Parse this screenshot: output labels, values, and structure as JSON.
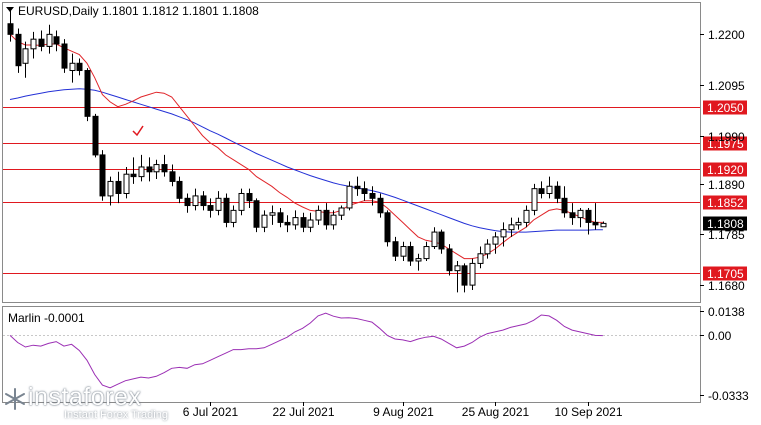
{
  "header": {
    "symbol_line": "EURUSD,Daily  1.1801  1.1812  1.1801  1.1808"
  },
  "chart_data": [
    {
      "type": "candlestick",
      "title": "EURUSD,Daily",
      "ohlc_header": {
        "open": 1.1801,
        "high": 1.1812,
        "low": 1.1801,
        "close": 1.1808
      },
      "ylim": [
        1.1645,
        1.2265
      ],
      "y_ticks": [
        "1.2200",
        "1.2095",
        "1.1990",
        "1.1890",
        "1.1785",
        "1.1680"
      ],
      "x_ticks": [
        {
          "label": "6 Jul 2021",
          "index": 26
        },
        {
          "label": "22 Jul 2021",
          "index": 38
        },
        {
          "label": "9 Aug 2021",
          "index": 51
        },
        {
          "label": "25 Aug 2021",
          "index": 63
        },
        {
          "label": "10 Sep 2021",
          "index": 75
        }
      ],
      "current_price_label": "1.1808",
      "levels": [
        {
          "price": 1.205,
          "label": "1.2050"
        },
        {
          "price": 1.1975,
          "label": "1.1975"
        },
        {
          "price": 1.192,
          "label": "1.1920"
        },
        {
          "price": 1.1852,
          "label": "1.1852"
        },
        {
          "price": 1.1705,
          "label": "1.1705"
        }
      ],
      "candles": [
        [
          1.2222,
          1.2255,
          1.2185,
          1.22
        ],
        [
          1.22,
          1.2212,
          1.212,
          1.2135
        ],
        [
          1.214,
          1.2185,
          1.211,
          1.217
        ],
        [
          1.217,
          1.2205,
          1.215,
          1.219
        ],
        [
          1.219,
          1.2208,
          1.2165,
          1.2175
        ],
        [
          1.2175,
          1.222,
          1.216,
          1.22
        ],
        [
          1.2195,
          1.2208,
          1.2165,
          1.218
        ],
        [
          1.218,
          1.219,
          1.212,
          1.213
        ],
        [
          1.2125,
          1.216,
          1.21,
          1.214
        ],
        [
          1.214,
          1.215,
          1.2115,
          1.2125
        ],
        [
          1.2125,
          1.213,
          1.202,
          1.203
        ],
        [
          1.203,
          1.2035,
          1.1945,
          1.195
        ],
        [
          1.195,
          1.196,
          1.1855,
          1.1865
        ],
        [
          1.1865,
          1.1905,
          1.1845,
          1.1895
        ],
        [
          1.1895,
          1.1915,
          1.185,
          1.187
        ],
        [
          1.187,
          1.1925,
          1.186,
          1.191
        ],
        [
          1.191,
          1.1945,
          1.189,
          1.1905
        ],
        [
          1.1905,
          1.195,
          1.1895,
          1.1925
        ],
        [
          1.1925,
          1.1945,
          1.1895,
          1.1915
        ],
        [
          1.1915,
          1.194,
          1.19,
          1.193
        ],
        [
          1.193,
          1.195,
          1.1905,
          1.1915
        ],
        [
          1.1915,
          1.193,
          1.1885,
          1.1895
        ],
        [
          1.1895,
          1.1905,
          1.185,
          1.186
        ],
        [
          1.186,
          1.187,
          1.183,
          1.1845
        ],
        [
          1.1845,
          1.188,
          1.1835,
          1.1865
        ],
        [
          1.1865,
          1.1875,
          1.1835,
          1.1845
        ],
        [
          1.1845,
          1.186,
          1.182,
          1.1835
        ],
        [
          1.1835,
          1.1875,
          1.1825,
          1.186
        ],
        [
          1.186,
          1.187,
          1.18,
          1.181
        ],
        [
          1.181,
          1.1845,
          1.18,
          1.1835
        ],
        [
          1.1835,
          1.188,
          1.1825,
          1.187
        ],
        [
          1.187,
          1.188,
          1.184,
          1.1855
        ],
        [
          1.1855,
          1.186,
          1.179,
          1.18
        ],
        [
          1.18,
          1.1835,
          1.179,
          1.1825
        ],
        [
          1.1825,
          1.1845,
          1.1805,
          1.183
        ],
        [
          1.183,
          1.184,
          1.18,
          1.181
        ],
        [
          1.181,
          1.1825,
          1.179,
          1.1805
        ],
        [
          1.1805,
          1.1835,
          1.1795,
          1.182
        ],
        [
          1.182,
          1.183,
          1.179,
          1.18
        ],
        [
          1.18,
          1.183,
          1.179,
          1.1815
        ],
        [
          1.1815,
          1.1845,
          1.1805,
          1.1835
        ],
        [
          1.1835,
          1.185,
          1.1795,
          1.1805
        ],
        [
          1.1805,
          1.1835,
          1.1795,
          1.1825
        ],
        [
          1.1825,
          1.1845,
          1.1815,
          1.184
        ],
        [
          1.184,
          1.1895,
          1.1835,
          1.1885
        ],
        [
          1.1885,
          1.1905,
          1.1865,
          1.188
        ],
        [
          1.188,
          1.1895,
          1.1855,
          1.187
        ],
        [
          1.187,
          1.1885,
          1.1845,
          1.186
        ],
        [
          1.186,
          1.187,
          1.182,
          1.183
        ],
        [
          1.183,
          1.1835,
          1.176,
          1.177
        ],
        [
          1.177,
          1.178,
          1.173,
          1.174
        ],
        [
          1.174,
          1.177,
          1.173,
          1.176
        ],
        [
          1.176,
          1.177,
          1.172,
          1.173
        ],
        [
          1.173,
          1.1745,
          1.171,
          1.1735
        ],
        [
          1.1735,
          1.177,
          1.173,
          1.176
        ],
        [
          1.176,
          1.18,
          1.1755,
          1.179
        ],
        [
          1.179,
          1.1795,
          1.1745,
          1.1755
        ],
        [
          1.1755,
          1.1765,
          1.17,
          1.171
        ],
        [
          1.171,
          1.173,
          1.1665,
          1.172
        ],
        [
          1.172,
          1.1725,
          1.1665,
          1.168
        ],
        [
          1.168,
          1.1735,
          1.167,
          1.1725
        ],
        [
          1.1725,
          1.176,
          1.1715,
          1.1745
        ],
        [
          1.1745,
          1.1775,
          1.1735,
          1.1765
        ],
        [
          1.1765,
          1.179,
          1.1745,
          1.178
        ],
        [
          1.178,
          1.181,
          1.176,
          1.1795
        ],
        [
          1.1795,
          1.182,
          1.178,
          1.1805
        ],
        [
          1.1805,
          1.182,
          1.1795,
          1.181
        ],
        [
          1.181,
          1.1845,
          1.18,
          1.1835
        ],
        [
          1.1835,
          1.189,
          1.1825,
          1.188
        ],
        [
          1.188,
          1.1895,
          1.186,
          1.187
        ],
        [
          1.187,
          1.1905,
          1.186,
          1.1885
        ],
        [
          1.1885,
          1.1895,
          1.185,
          1.186
        ],
        [
          1.186,
          1.1885,
          1.182,
          1.183
        ],
        [
          1.183,
          1.185,
          1.1805,
          1.182
        ],
        [
          1.182,
          1.184,
          1.18,
          1.1835
        ],
        [
          1.1835,
          1.184,
          1.1785,
          1.181
        ],
        [
          1.181,
          1.185,
          1.1795,
          1.1805
        ],
        [
          1.1801,
          1.1812,
          1.1801,
          1.1808
        ]
      ],
      "ma_fast": [
        1.22,
        1.2185,
        1.2178,
        1.2178,
        1.2177,
        1.218,
        1.218,
        1.2172,
        1.2165,
        1.2158,
        1.214,
        1.211,
        1.2075,
        1.206,
        1.205,
        1.2055,
        1.2062,
        1.207,
        1.2075,
        1.208,
        1.2078,
        1.207,
        1.205,
        1.203,
        1.201,
        1.199,
        1.1975,
        1.1965,
        1.195,
        1.194,
        1.193,
        1.192,
        1.1905,
        1.1895,
        1.1885,
        1.1872,
        1.1862,
        1.185,
        1.1842,
        1.1835,
        1.1833,
        1.183,
        1.183,
        1.1835,
        1.1845,
        1.185,
        1.1855,
        1.1855,
        1.1852,
        1.184,
        1.1825,
        1.181,
        1.1795,
        1.178,
        1.1773,
        1.177,
        1.1765,
        1.1755,
        1.1745,
        1.1735,
        1.1735,
        1.1738,
        1.1745,
        1.1755,
        1.1768,
        1.178,
        1.179,
        1.18,
        1.1815,
        1.1825,
        1.1835,
        1.1838,
        1.1835,
        1.1828,
        1.1822,
        1.1815,
        1.181,
        1.181
      ],
      "ma_slow": [
        1.2065,
        1.2068,
        1.2072,
        1.2075,
        1.2078,
        1.2081,
        1.2083,
        1.2085,
        1.2086,
        1.2087,
        1.2086,
        1.2084,
        1.208,
        1.2075,
        1.207,
        1.2065,
        1.206,
        1.2055,
        1.205,
        1.2045,
        1.204,
        1.2035,
        1.2029,
        1.2023,
        1.2016,
        1.2008,
        1.2,
        1.1993,
        1.1985,
        1.1977,
        1.1969,
        1.1961,
        1.1953,
        1.1946,
        1.1939,
        1.1932,
        1.1925,
        1.1919,
        1.1913,
        1.1907,
        1.1902,
        1.1897,
        1.1892,
        1.1888,
        1.1885,
        1.1882,
        1.1879,
        1.1876,
        1.1872,
        1.1867,
        1.1862,
        1.1856,
        1.185,
        1.1844,
        1.1838,
        1.1832,
        1.1826,
        1.182,
        1.1814,
        1.1808,
        1.1803,
        1.1799,
        1.1796,
        1.1793,
        1.1791,
        1.179,
        1.179,
        1.179,
        1.1791,
        1.1792,
        1.1793,
        1.1794,
        1.1794,
        1.1794,
        1.1794,
        1.1794,
        1.1795,
        1.1795
      ]
    },
    {
      "type": "line",
      "title": "Marlin -0.0001",
      "ylim": [
        -0.0375,
        0.016
      ],
      "y_ticks": [
        "0.0138",
        "0.00",
        "-0.0333"
      ],
      "values": [
        0.0,
        -0.004,
        -0.0065,
        -0.0055,
        -0.006,
        -0.0045,
        -0.0035,
        -0.006,
        -0.005,
        -0.0085,
        -0.014,
        -0.022,
        -0.028,
        -0.0295,
        -0.0275,
        -0.0255,
        -0.0245,
        -0.0235,
        -0.024,
        -0.023,
        -0.021,
        -0.0185,
        -0.018,
        -0.0185,
        -0.0165,
        -0.016,
        -0.014,
        -0.012,
        -0.01,
        -0.008,
        -0.008,
        -0.0075,
        -0.0075,
        -0.007,
        -0.005,
        -0.003,
        -0.001,
        0.002,
        0.004,
        0.007,
        0.011,
        0.0125,
        0.0108,
        0.0098,
        0.01,
        0.0095,
        0.0085,
        0.0075,
        0.004,
        0.0,
        -0.002,
        -0.0025,
        -0.0035,
        -0.002,
        -0.001,
        -0.0005,
        -0.002,
        -0.0045,
        -0.007,
        -0.006,
        -0.004,
        -0.001,
        0.001,
        0.002,
        0.003,
        0.0045,
        0.0055,
        0.0065,
        0.0085,
        0.0115,
        0.011,
        0.0085,
        0.005,
        0.003,
        0.002,
        0.001,
        0.0,
        -0.0001
      ]
    }
  ],
  "watermark": {
    "name": "instaforex",
    "tagline": "Instant Forex Trading"
  },
  "colors": {
    "bull_fill": "#ffffff",
    "bear_fill": "#000000",
    "ma_fast": "#e0252a",
    "ma_slow": "#2431d6",
    "levels": "#e0181f",
    "oscillator": "#9b2fb4",
    "price_tag_bg": "#000000"
  }
}
